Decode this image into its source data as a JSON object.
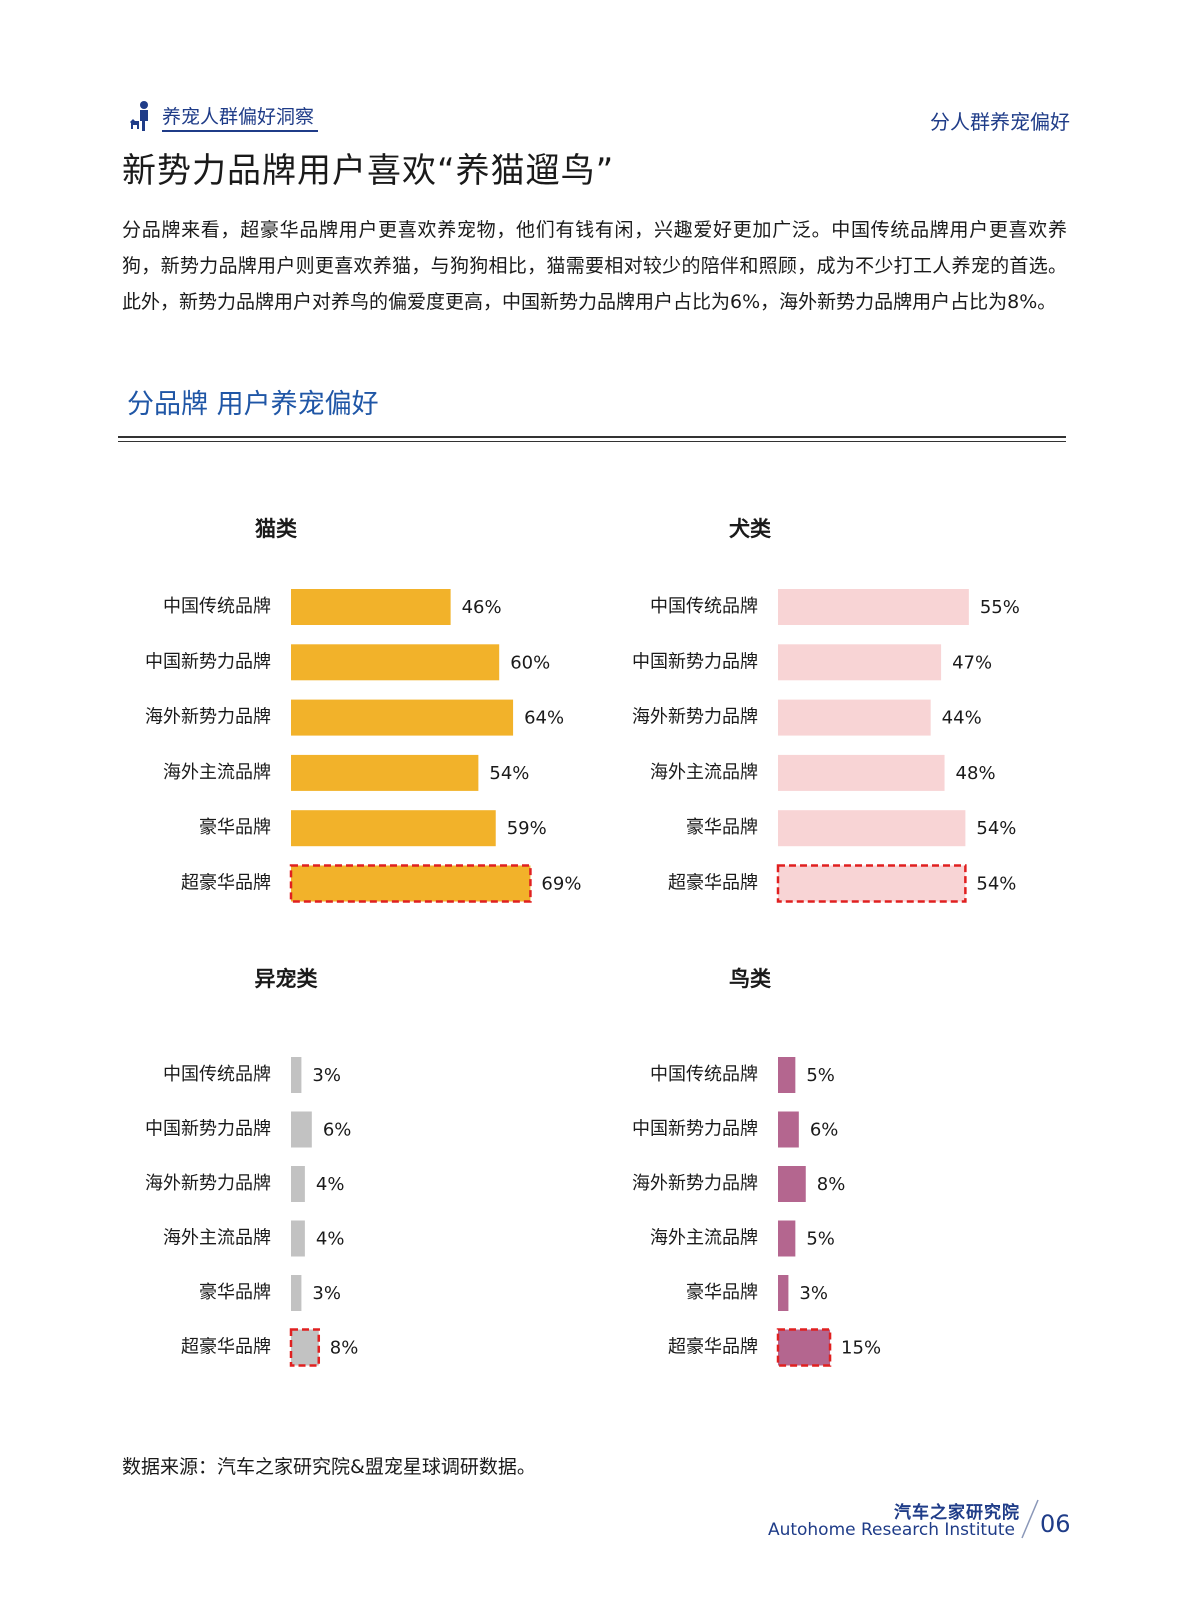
{
  "header": {
    "section_tag": "养宠人群偏好洞察",
    "right_tag": "分人群养宠偏好"
  },
  "title": "新势力品牌用户喜欢“养猫遛鸟”",
  "intro": "分品牌来看，超豪华品牌用户更喜欢养宠物，他们有钱有闲，兴趣爱好更加广泛。中国传统品牌用户更喜欢养狗，新势力品牌用户则更喜欢养猫，与狗狗相比，猫需要相对较少的陪伴和照顾，成为不少打工人养宠的首选。此外，新势力品牌用户对养鸟的偏爱度更高，中国新势力品牌用户占比为6%，海外新势力品牌用户占比为8%。",
  "chart_heading": "分品牌  用户养宠偏好",
  "source": "数据来源：汽车之家研究院&盟宠星球调研数据。",
  "footer": {
    "org_cn": "汽车之家研究院",
    "org_en": "Autohome Research Institute",
    "page": "06"
  },
  "colors": {
    "cat": "#f2b22a",
    "dog": "#f8d4d5",
    "exotic": "#c2c2c2",
    "bird": "#b4668f",
    "highlight": "#e02020",
    "accent": "#1f3c88",
    "heading": "#1f56a6"
  },
  "icons": {
    "section": "person-with-dog-icon"
  },
  "chart_data": [
    {
      "type": "bar",
      "orientation": "horizontal",
      "title": "猫类",
      "categories": [
        "中国传统品牌",
        "中国新势力品牌",
        "海外新势力品牌",
        "海外主流品牌",
        "豪华品牌",
        "超豪华品牌"
      ],
      "values": [
        46,
        60,
        64,
        54,
        59,
        69
      ],
      "labels": [
        "46%",
        "60%",
        "64%",
        "54%",
        "59%",
        "69%"
      ],
      "color_key": "cat",
      "highlight_index": 5,
      "xlim": [
        0,
        100
      ]
    },
    {
      "type": "bar",
      "orientation": "horizontal",
      "title": "犬类",
      "categories": [
        "中国传统品牌",
        "中国新势力品牌",
        "海外新势力品牌",
        "海外主流品牌",
        "豪华品牌",
        "超豪华品牌"
      ],
      "values": [
        55,
        47,
        44,
        48,
        54,
        54
      ],
      "labels": [
        "55%",
        "47%",
        "44%",
        "48%",
        "54%",
        "54%"
      ],
      "color_key": "dog",
      "highlight_index": 5,
      "xlim": [
        0,
        100
      ]
    },
    {
      "type": "bar",
      "orientation": "horizontal",
      "title": "异宠类",
      "categories": [
        "中国传统品牌",
        "中国新势力品牌",
        "海外新势力品牌",
        "海外主流品牌",
        "豪华品牌",
        "超豪华品牌"
      ],
      "values": [
        3,
        6,
        4,
        4,
        3,
        8
      ],
      "labels": [
        "3%",
        "6%",
        "4%",
        "4%",
        "3%",
        "8%"
      ],
      "color_key": "exotic",
      "highlight_index": 5,
      "xlim": [
        0,
        100
      ]
    },
    {
      "type": "bar",
      "orientation": "horizontal",
      "title": "鸟类",
      "categories": [
        "中国传统品牌",
        "中国新势力品牌",
        "海外新势力品牌",
        "海外主流品牌",
        "豪华品牌",
        "超豪华品牌"
      ],
      "values": [
        5,
        6,
        8,
        5,
        3,
        15
      ],
      "labels": [
        "5%",
        "6%",
        "8%",
        "5%",
        "3%",
        "15%"
      ],
      "color_key": "bird",
      "highlight_index": 5,
      "xlim": [
        0,
        100
      ]
    }
  ]
}
